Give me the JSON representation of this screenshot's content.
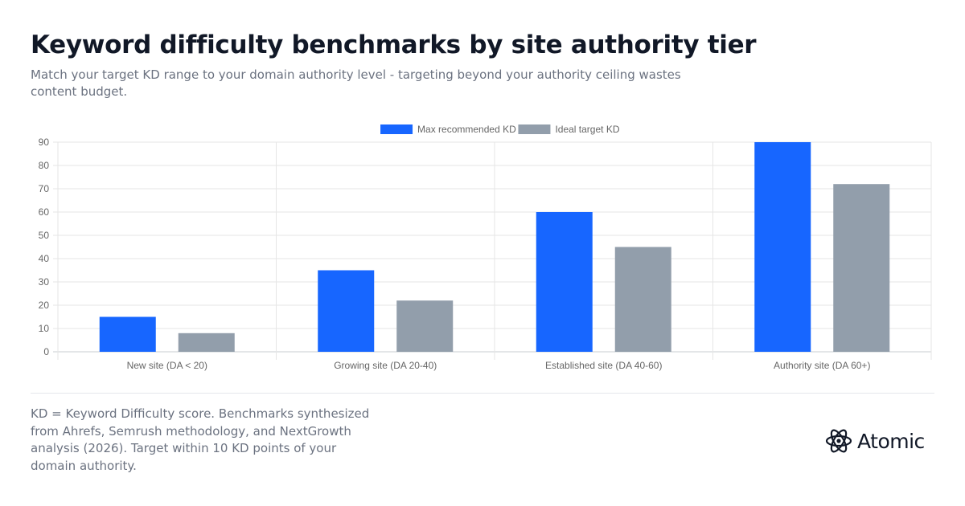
{
  "header": {
    "title": "Keyword difficulty benchmarks by site authority tier",
    "subtitle": "Match your target KD range to your domain authority level - targeting beyond your authority ceiling wastes content budget."
  },
  "chart_data": {
    "type": "bar",
    "categories": [
      "New site (DA < 20)",
      "Growing site (DA 20-40)",
      "Established site (DA 40-60)",
      "Authority site (DA 60+)"
    ],
    "series": [
      {
        "name": "Max recommended KD",
        "values": [
          15,
          35,
          60,
          90
        ],
        "color": "#1766ff"
      },
      {
        "name": "Ideal target KD",
        "values": [
          8,
          22,
          45,
          72
        ],
        "color": "#929eab"
      }
    ],
    "ylim": [
      0,
      90
    ],
    "yticks": [
      0,
      10,
      20,
      30,
      40,
      50,
      60,
      70,
      80,
      90
    ],
    "grid": true,
    "legend": "top-center"
  },
  "footer": {
    "note": "KD = Keyword Difficulty score. Benchmarks synthesized from Ahrefs, Semrush methodology, and NextGrowth analysis (2026). Target within 10 KD points of your domain authority.",
    "brand": "Atomic",
    "brand_icon": "atomic-logo-icon"
  }
}
